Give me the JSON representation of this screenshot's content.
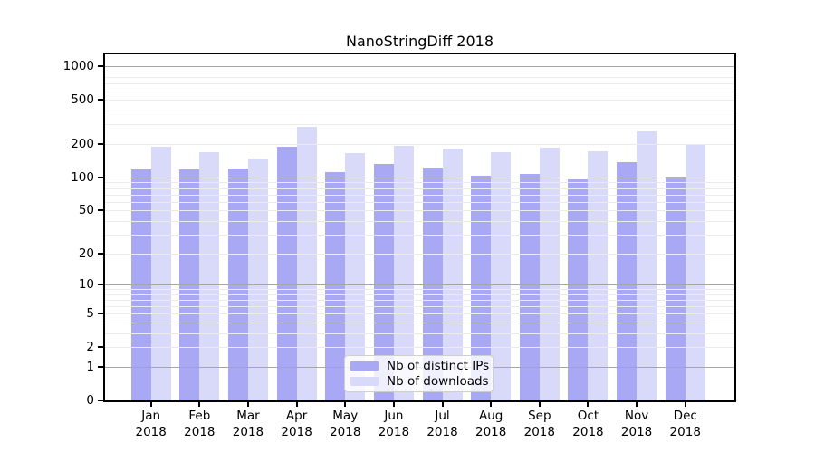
{
  "chart_data": {
    "type": "bar",
    "title": "NanoStringDiff 2018",
    "categories": [
      "Jan",
      "Feb",
      "Mar",
      "Apr",
      "May",
      "Jun",
      "Jul",
      "Aug",
      "Sep",
      "Oct",
      "Nov",
      "Dec"
    ],
    "category_year": "2018",
    "series": [
      {
        "name": "Nb of distinct IPs",
        "key": "distinct-ips",
        "color": "#a8a8f4",
        "values": [
          118,
          118,
          121,
          188,
          111,
          132,
          122,
          103,
          108,
          96,
          137,
          102
        ]
      },
      {
        "name": "Nb of downloads",
        "key": "downloads",
        "color": "#d9d9f9",
        "values": [
          190,
          168,
          147,
          286,
          165,
          194,
          181,
          168,
          184,
          171,
          259,
          195
        ]
      }
    ],
    "y_scale": "log1p",
    "y_ticks": [
      0,
      1,
      2,
      5,
      10,
      20,
      50,
      100,
      200,
      500,
      1000
    ],
    "y_major_gridlines": [
      1,
      10,
      100,
      1000
    ],
    "ylim": [
      0,
      1270
    ],
    "xlabel": "",
    "ylabel": "",
    "grid": true,
    "legend_position": "bottom-center",
    "frame_color": "#000000",
    "major_grid_color": "#a6a6a6",
    "minor_grid_color": "#ebebeb"
  }
}
